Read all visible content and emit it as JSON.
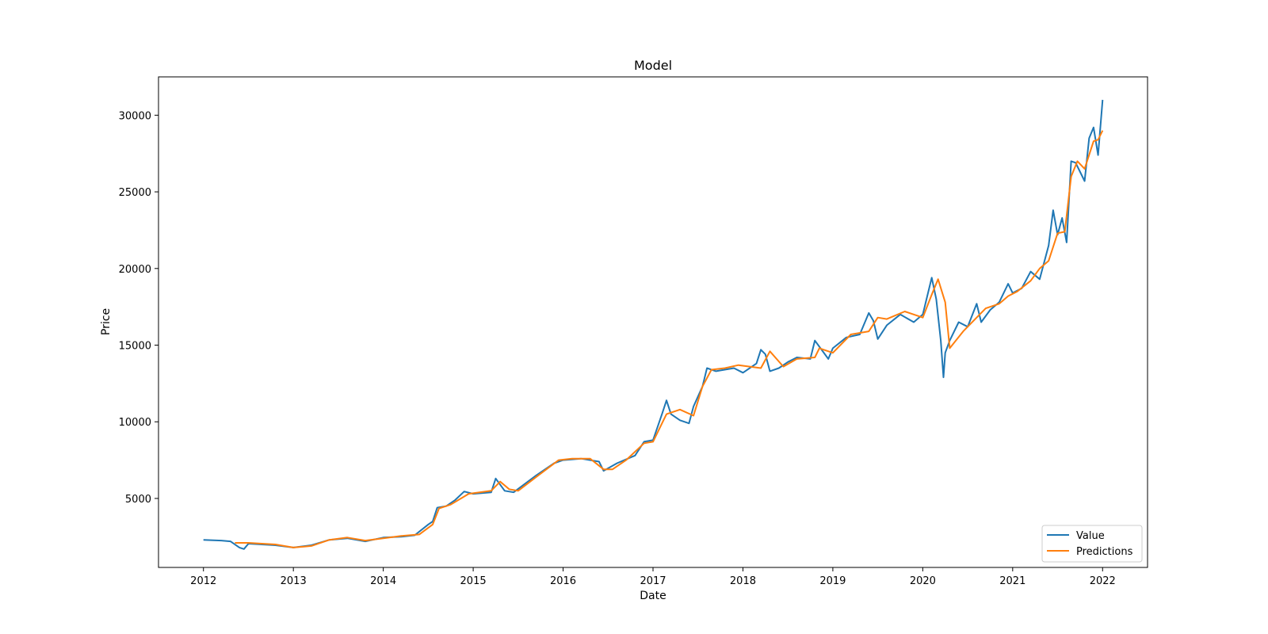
{
  "chart_data": {
    "type": "line",
    "title": "Model",
    "xlabel": "Date",
    "ylabel": "Price",
    "xlim": [
      2011.5,
      2022.5
    ],
    "ylim": [
      500,
      32500
    ],
    "xticks": [
      2012,
      2013,
      2014,
      2015,
      2016,
      2017,
      2018,
      2019,
      2020,
      2021,
      2022
    ],
    "xtick_labels": [
      "2012",
      "2013",
      "2014",
      "2015",
      "2016",
      "2017",
      "2018",
      "2019",
      "2020",
      "2021",
      "2022"
    ],
    "yticks": [
      5000,
      10000,
      15000,
      20000,
      25000,
      30000
    ],
    "ytick_labels": [
      "5000",
      "10000",
      "15000",
      "20000",
      "25000",
      "30000"
    ],
    "grid": false,
    "legend_position": "bottom-right",
    "series": [
      {
        "name": "Value",
        "color": "#1f77b4",
        "x": [
          2012.0,
          2012.2,
          2012.3,
          2012.4,
          2012.45,
          2012.5,
          2012.8,
          2013.0,
          2013.2,
          2013.4,
          2013.6,
          2013.8,
          2014.0,
          2014.2,
          2014.35,
          2014.5,
          2014.55,
          2014.6,
          2014.7,
          2014.8,
          2014.9,
          2015.0,
          2015.2,
          2015.25,
          2015.35,
          2015.45,
          2015.7,
          2015.9,
          2016.0,
          2016.2,
          2016.4,
          2016.45,
          2016.6,
          2016.8,
          2016.9,
          2017.0,
          2017.1,
          2017.15,
          2017.2,
          2017.3,
          2017.4,
          2017.45,
          2017.55,
          2017.6,
          2017.7,
          2017.9,
          2018.0,
          2018.15,
          2018.2,
          2018.25,
          2018.3,
          2018.4,
          2018.5,
          2018.6,
          2018.75,
          2018.8,
          2018.95,
          2019.0,
          2019.15,
          2019.3,
          2019.4,
          2019.45,
          2019.5,
          2019.6,
          2019.75,
          2019.9,
          2020.0,
          2020.1,
          2020.15,
          2020.2,
          2020.23,
          2020.25,
          2020.3,
          2020.4,
          2020.5,
          2020.6,
          2020.65,
          2020.75,
          2020.85,
          2020.95,
          2021.0,
          2021.1,
          2021.2,
          2021.3,
          2021.4,
          2021.45,
          2021.5,
          2021.55,
          2021.6,
          2021.65,
          2021.7,
          2021.8,
          2021.85,
          2021.9,
          2021.95,
          2022.0
        ],
        "y": [
          2300,
          2250,
          2200,
          1800,
          1700,
          2050,
          1950,
          1800,
          1950,
          2300,
          2400,
          2200,
          2450,
          2500,
          2600,
          3300,
          3500,
          4400,
          4500,
          4900,
          5450,
          5300,
          5400,
          6300,
          5500,
          5400,
          6500,
          7300,
          7500,
          7600,
          7400,
          6800,
          7300,
          7800,
          8700,
          8800,
          10500,
          11400,
          10500,
          10100,
          9900,
          11000,
          12300,
          13500,
          13300,
          13500,
          13200,
          13800,
          14700,
          14400,
          13300,
          13500,
          13900,
          14200,
          14100,
          15300,
          14100,
          14800,
          15500,
          15700,
          17100,
          16600,
          15400,
          16300,
          17000,
          16500,
          17000,
          19400,
          18000,
          15300,
          12900,
          14500,
          15300,
          16500,
          16200,
          17700,
          16500,
          17300,
          17800,
          19000,
          18400,
          18700,
          19800,
          19300,
          21500,
          23800,
          22200,
          23300,
          21700,
          27000,
          26900,
          25700,
          28500,
          29200,
          27400,
          31000
        ]
      },
      {
        "name": "Predictions",
        "color": "#ff7f0e",
        "x": [
          2012.35,
          2012.5,
          2012.8,
          2013.0,
          2013.2,
          2013.4,
          2013.6,
          2013.8,
          2014.0,
          2014.2,
          2014.4,
          2014.55,
          2014.62,
          2014.75,
          2014.95,
          2015.2,
          2015.3,
          2015.4,
          2015.5,
          2015.7,
          2015.95,
          2016.1,
          2016.3,
          2016.45,
          2016.55,
          2016.7,
          2016.9,
          2017.0,
          2017.15,
          2017.3,
          2017.45,
          2017.55,
          2017.65,
          2017.8,
          2017.95,
          2018.2,
          2018.3,
          2018.45,
          2018.6,
          2018.8,
          2018.85,
          2019.0,
          2019.2,
          2019.4,
          2019.5,
          2019.6,
          2019.8,
          2020.0,
          2020.1,
          2020.17,
          2020.25,
          2020.3,
          2020.45,
          2020.6,
          2020.7,
          2020.85,
          2020.95,
          2021.05,
          2021.2,
          2021.3,
          2021.4,
          2021.5,
          2021.58,
          2021.65,
          2021.72,
          2021.8,
          2021.9,
          2021.95,
          2022.0
        ],
        "y": [
          2100,
          2100,
          2000,
          1800,
          1900,
          2300,
          2450,
          2250,
          2400,
          2550,
          2650,
          3300,
          4350,
          4600,
          5300,
          5500,
          6100,
          5600,
          5500,
          6400,
          7500,
          7600,
          7600,
          6900,
          6900,
          7500,
          8600,
          8700,
          10500,
          10800,
          10400,
          12300,
          13400,
          13500,
          13700,
          13500,
          14600,
          13600,
          14100,
          14200,
          14800,
          14500,
          15700,
          15900,
          16800,
          16700,
          17200,
          16800,
          18300,
          19300,
          17800,
          14800,
          15900,
          16800,
          17400,
          17700,
          18200,
          18500,
          19200,
          20000,
          20500,
          22300,
          22400,
          26000,
          27000,
          26500,
          28300,
          28400,
          29000
        ]
      }
    ]
  }
}
